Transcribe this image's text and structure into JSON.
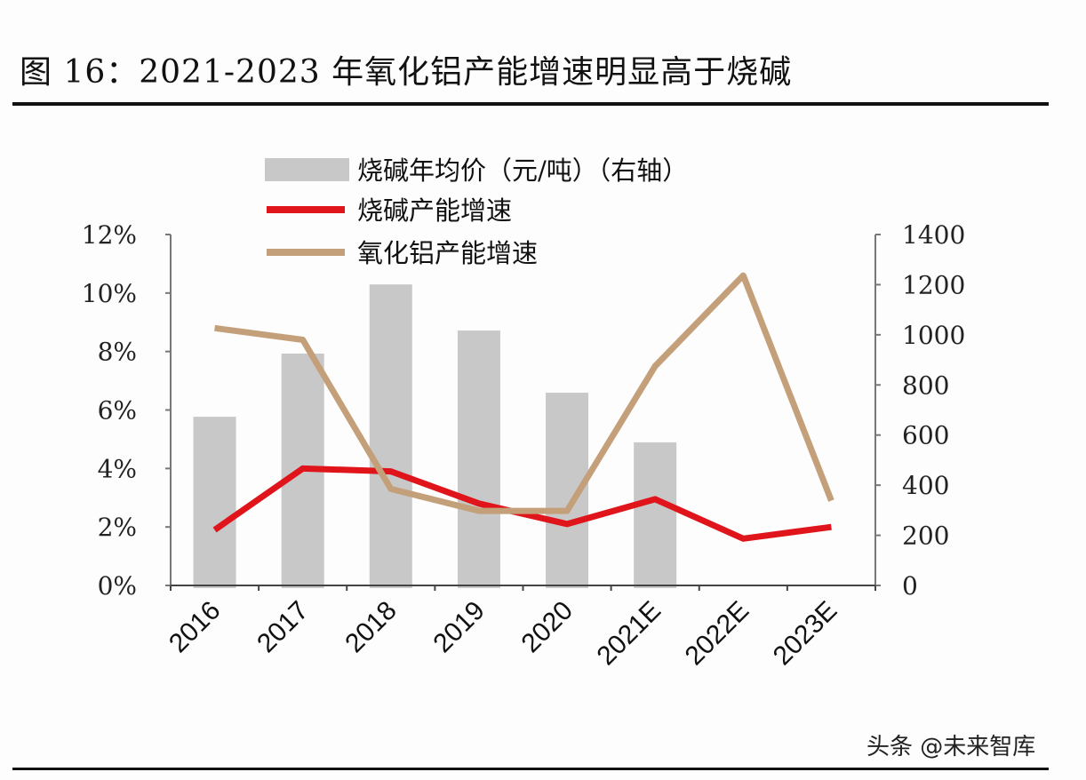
{
  "title": "图 16：2021-2023 年氧化铝产能增速明显高于烧碱",
  "watermark": "头条 @未来智库",
  "chart_data": {
    "type": "bar+line",
    "title": "图 16：2021-2023 年氧化铝产能增速明显高于烧碱",
    "categories": [
      "2016",
      "2017",
      "2018",
      "2019",
      "2020",
      "2021E",
      "2022E",
      "2023E"
    ],
    "left_axis": {
      "min": 0,
      "max": 12,
      "step": 2,
      "ticks": [
        "0%",
        "2%",
        "4%",
        "6%",
        "8%",
        "10%",
        "12%"
      ]
    },
    "right_axis": {
      "min": 0,
      "max": 1400,
      "step": 200,
      "ticks": [
        "0",
        "200",
        "400",
        "600",
        "800",
        "1000",
        "1200",
        "1400"
      ]
    },
    "grid": false,
    "legend_position": "top",
    "series": [
      {
        "name": "烧碱年均价（元/吨）（右轴）",
        "type": "bar",
        "axis": "right",
        "color": "#c8c8c8",
        "values": [
          673,
          925,
          1201,
          1017,
          769,
          571,
          null,
          null
        ]
      },
      {
        "name": "烧碱产能增速",
        "type": "line",
        "axis": "left",
        "color": "#e0151b",
        "unit": "%",
        "values": [
          1.9,
          4.0,
          3.9,
          2.8,
          2.1,
          2.95,
          1.6,
          2.0
        ]
      },
      {
        "name": "氧化铝产能增速",
        "type": "line",
        "axis": "left",
        "color": "#c4a07a",
        "unit": "%",
        "values": [
          8.8,
          8.4,
          3.3,
          2.55,
          2.55,
          7.5,
          10.6,
          2.9
        ]
      }
    ]
  }
}
